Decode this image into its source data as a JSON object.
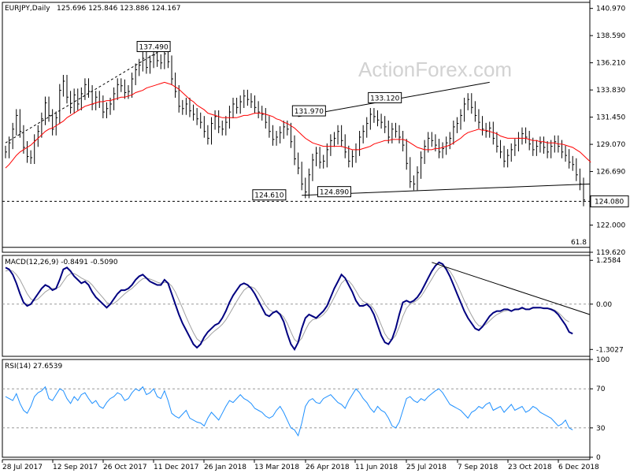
{
  "chart_data": {
    "type": "line",
    "panels": {
      "price": {
        "header": "EURJPY,Daily",
        "ohlc_values": "125.696 125.846 123.886 124.167",
        "y_ticks": [
          "140.970",
          "138.590",
          "136.210",
          "133.830",
          "131.450",
          "129.070",
          "126.690",
          "124.080",
          "122.000",
          "119.620"
        ],
        "ylim": [
          119.62,
          141.5
        ],
        "watermark": "ActionForex.com",
        "current_price": "124.080",
        "fib_label": "61.8",
        "price_labels": [
          "137.490",
          "131.970",
          "133.120",
          "124.610",
          "124.890"
        ],
        "series": [
          {
            "name": "EURJPY",
            "color": "#000000",
            "values": [
              128.4,
              129.2,
              130.4,
              131.6,
              130.2,
              128.8,
              128.0,
              127.9,
              129.4,
              130.2,
              131.3,
              132.7,
              131.6,
              130.4,
              131.4,
              133.8,
              134.6,
              133.2,
              132.3,
              133.4,
              132.6,
              133.5,
              134.3,
              133.7,
              132.6,
              133.2,
              132.8,
              131.9,
              132.2,
              132.6,
              133.5,
              134.3,
              134.2,
              133.6,
              133.7,
              134.8,
              135.6,
              136.0,
              136.6,
              135.8,
              136.3,
              136.9,
              136.4,
              136.2,
              137.0,
              136.3,
              134.8,
              133.7,
              132.4,
              132.2,
              132.6,
              132.0,
              131.7,
              131.3,
              131.0,
              130.2,
              129.6,
              130.9,
              131.5,
              130.6,
              130.4,
              131.0,
              131.9,
              132.6,
              132.3,
              132.8,
              133.3,
              133.0,
              132.8,
              132.3,
              131.9,
              131.7,
              131.0,
              130.2,
              129.5,
              129.7,
              130.1,
              130.6,
              130.4,
              129.3,
              127.8,
              127.0,
              125.6,
              124.9,
              126.4,
              127.7,
              128.3,
              127.5,
              127.6,
              128.6,
              129.4,
              129.6,
              130.2,
              129.4,
              128.4,
              127.6,
              128.0,
              128.6,
              129.7,
              130.2,
              130.9,
              131.7,
              131.5,
              131.2,
              131.0,
              130.6,
              129.7,
              130.4,
              130.2,
              129.7,
              129.0,
              127.4,
              125.8,
              125.6,
              126.6,
              127.9,
              128.9,
              129.6,
              129.4,
              129.0,
              128.4,
              128.7,
              129.2,
              129.6,
              130.6,
              130.9,
              131.6,
              132.6,
              133.0,
              132.3,
              131.6,
              131.0,
              130.4,
              130.2,
              130.5,
              129.6,
              128.9,
              128.4,
              127.6,
              128.1,
              128.6,
              129.0,
              129.6,
              130.0,
              129.7,
              129.1,
              128.6,
              128.9,
              129.2,
              128.8,
              128.4,
              128.9,
              129.3,
              128.9,
              128.4,
              128.1,
              127.5,
              127.3,
              126.4,
              125.6,
              124.2
            ]
          },
          {
            "name": "MA",
            "color": "#ff0000",
            "values": [
              127.0,
              127.3,
              127.7,
              128.1,
              128.4,
              128.6,
              128.8,
              129.0,
              129.3,
              129.6,
              129.9,
              130.2,
              130.4,
              130.5,
              130.7,
              130.9,
              131.1,
              131.4,
              131.6,
              131.8,
              132.0,
              132.2,
              132.4,
              132.5,
              132.6,
              132.7,
              132.8,
              132.8,
              132.9,
              132.9,
              133.0,
              133.1,
              133.2,
              133.2,
              133.3,
              133.4,
              133.6,
              133.7,
              133.8,
              134.0,
              134.1,
              134.2,
              134.3,
              134.4,
              134.5,
              134.4,
              134.3,
              134.1,
              133.9,
              133.6,
              133.3,
              133.0,
              132.8,
              132.5,
              132.3,
              132.1,
              131.8,
              131.7,
              131.6,
              131.5,
              131.4,
              131.4,
              131.4,
              131.4,
              131.4,
              131.5,
              131.6,
              131.6,
              131.7,
              131.8,
              131.8,
              131.8,
              131.7,
              131.6,
              131.5,
              131.3,
              131.2,
              131.0,
              130.9,
              130.7,
              130.5,
              130.2,
              129.9,
              129.6,
              129.4,
              129.2,
              129.1,
              129.0,
              128.9,
              128.9,
              128.9,
              128.9,
              128.9,
              128.9,
              128.8,
              128.7,
              128.6,
              128.6,
              128.6,
              128.7,
              128.8,
              128.9,
              129.1,
              129.2,
              129.3,
              129.4,
              129.4,
              129.5,
              129.5,
              129.5,
              129.5,
              129.4,
              129.2,
              129.0,
              128.8,
              128.7,
              128.6,
              128.6,
              128.6,
              128.7,
              128.7,
              128.8,
              128.9,
              129.0,
              129.2,
              129.4,
              129.6,
              129.9,
              130.1,
              130.2,
              130.3,
              130.4,
              130.3,
              130.3,
              130.2,
              130.1,
              130.0,
              129.8,
              129.7,
              129.6,
              129.6,
              129.6,
              129.6,
              129.6,
              129.6,
              129.5,
              129.4,
              129.4,
              129.3,
              129.3,
              129.2,
              129.2,
              129.2,
              129.1,
              129.1,
              129.0,
              128.9,
              128.8,
              128.6,
              128.4,
              128.1,
              127.8,
              127.5
            ]
          }
        ]
      },
      "macd": {
        "header": "MACD(12,26,9) -0.8491 -0.5090",
        "y_ticks": [
          "1.2584",
          "0.00",
          "-1.3027"
        ],
        "ylim": [
          -1.5,
          1.4
        ],
        "series": [
          {
            "name": "MACD",
            "color": "#000080",
            "values": [
              1.05,
              1.0,
              0.85,
              0.6,
              0.3,
              0.05,
              -0.05,
              0.0,
              0.15,
              0.3,
              0.45,
              0.55,
              0.5,
              0.4,
              0.45,
              0.7,
              1.0,
              1.05,
              0.95,
              0.8,
              0.7,
              0.6,
              0.65,
              0.55,
              0.35,
              0.2,
              0.1,
              0.0,
              -0.1,
              0.0,
              0.15,
              0.3,
              0.4,
              0.4,
              0.45,
              0.55,
              0.7,
              0.8,
              0.85,
              0.75,
              0.65,
              0.6,
              0.55,
              0.55,
              0.7,
              0.6,
              0.3,
              0.0,
              -0.3,
              -0.55,
              -0.75,
              -0.95,
              -1.15,
              -1.25,
              -1.15,
              -0.95,
              -0.8,
              -0.7,
              -0.6,
              -0.55,
              -0.4,
              -0.2,
              0.05,
              0.25,
              0.4,
              0.55,
              0.6,
              0.55,
              0.45,
              0.3,
              0.1,
              -0.1,
              -0.3,
              -0.35,
              -0.25,
              -0.2,
              -0.3,
              -0.5,
              -0.85,
              -1.15,
              -1.3,
              -1.1,
              -0.7,
              -0.4,
              -0.3,
              -0.35,
              -0.4,
              -0.3,
              -0.2,
              -0.05,
              0.2,
              0.45,
              0.65,
              0.85,
              0.75,
              0.55,
              0.35,
              0.1,
              -0.05,
              -0.05,
              0.0,
              -0.1,
              -0.3,
              -0.6,
              -0.9,
              -1.1,
              -1.15,
              -1.0,
              -0.7,
              -0.3,
              0.05,
              0.1,
              0.05,
              0.1,
              0.2,
              0.35,
              0.55,
              0.75,
              0.95,
              1.1,
              1.2,
              1.15,
              1.0,
              0.8,
              0.55,
              0.3,
              0.05,
              -0.2,
              -0.4,
              -0.55,
              -0.7,
              -0.75,
              -0.65,
              -0.5,
              -0.35,
              -0.25,
              -0.2,
              -0.2,
              -0.15,
              -0.15,
              -0.2,
              -0.15,
              -0.15,
              -0.1,
              -0.15,
              -0.15,
              -0.1,
              -0.1,
              -0.1,
              -0.12,
              -0.12,
              -0.15,
              -0.2,
              -0.3,
              -0.45,
              -0.6,
              -0.8,
              -0.85
            ]
          },
          {
            "name": "Signal",
            "color": "#a0a0a0",
            "values": [
              0.95,
              0.98,
              0.95,
              0.85,
              0.7,
              0.5,
              0.3,
              0.15,
              0.1,
              0.15,
              0.25,
              0.35,
              0.42,
              0.45,
              0.45,
              0.5,
              0.65,
              0.8,
              0.88,
              0.88,
              0.82,
              0.75,
              0.7,
              0.65,
              0.55,
              0.42,
              0.3,
              0.18,
              0.05,
              0.0,
              0.02,
              0.1,
              0.2,
              0.3,
              0.38,
              0.45,
              0.55,
              0.65,
              0.73,
              0.75,
              0.72,
              0.68,
              0.63,
              0.6,
              0.62,
              0.62,
              0.52,
              0.35,
              0.12,
              -0.12,
              -0.37,
              -0.6,
              -0.82,
              -1.0,
              -1.08,
              -1.05,
              -0.96,
              -0.85,
              -0.76,
              -0.68,
              -0.58,
              -0.45,
              -0.28,
              -0.1,
              0.08,
              0.25,
              0.4,
              0.48,
              0.5,
              0.45,
              0.32,
              0.15,
              -0.03,
              -0.16,
              -0.22,
              -0.23,
              -0.27,
              -0.37,
              -0.55,
              -0.8,
              -1.02,
              -1.1,
              -0.98,
              -0.75,
              -0.55,
              -0.45,
              -0.42,
              -0.38,
              -0.3,
              -0.18,
              0.0,
              0.2,
              0.4,
              0.6,
              0.7,
              0.67,
              0.55,
              0.38,
              0.2,
              0.08,
              0.03,
              -0.02,
              -0.15,
              -0.35,
              -0.6,
              -0.85,
              -1.0,
              -1.02,
              -0.9,
              -0.65,
              -0.35,
              -0.12,
              0.0,
              0.05,
              0.12,
              0.22,
              0.38,
              0.55,
              0.72,
              0.9,
              1.03,
              1.08,
              1.05,
              0.95,
              0.78,
              0.57,
              0.34,
              0.1,
              -0.12,
              -0.32,
              -0.5,
              -0.62,
              -0.64,
              -0.58,
              -0.48,
              -0.38,
              -0.3,
              -0.25,
              -0.2,
              -0.18,
              -0.19,
              -0.17,
              -0.16,
              -0.13,
              -0.14,
              -0.14,
              -0.12,
              -0.11,
              -0.1,
              -0.11,
              -0.11,
              -0.13,
              -0.17,
              -0.24,
              -0.34,
              -0.45,
              -0.51
            ]
          }
        ]
      },
      "rsi": {
        "header": "RSI(14) 27.6539",
        "y_ticks": [
          "100",
          "70",
          "30",
          "0"
        ],
        "ylim": [
          0,
          100
        ],
        "series": [
          {
            "name": "RSI",
            "color": "#1e90ff",
            "values": [
              62,
              60,
              58,
              65,
              55,
              48,
              45,
              52,
              62,
              66,
              68,
              72,
              60,
              58,
              64,
              70,
              68,
              60,
              55,
              62,
              58,
              64,
              66,
              60,
              55,
              58,
              52,
              50,
              56,
              60,
              62,
              66,
              64,
              58,
              60,
              66,
              70,
              68,
              72,
              64,
              66,
              70,
              62,
              60,
              68,
              58,
              45,
              42,
              40,
              44,
              48,
              40,
              38,
              36,
              35,
              32,
              40,
              46,
              42,
              38,
              45,
              52,
              58,
              56,
              60,
              64,
              60,
              58,
              55,
              50,
              48,
              46,
              42,
              40,
              42,
              48,
              52,
              46,
              38,
              30,
              28,
              22,
              35,
              52,
              58,
              60,
              56,
              55,
              60,
              62,
              64,
              60,
              56,
              54,
              50,
              58,
              64,
              70,
              66,
              60,
              56,
              50,
              46,
              52,
              48,
              46,
              40,
              32,
              30,
              36,
              48,
              60,
              62,
              58,
              56,
              60,
              58,
              62,
              65,
              68,
              70,
              66,
              60,
              54,
              52,
              50,
              48,
              44,
              40,
              46,
              48,
              52,
              50,
              54,
              56,
              48,
              50,
              52,
              46,
              50,
              54,
              48,
              50,
              52,
              46,
              48,
              52,
              50,
              46,
              44,
              42,
              40,
              36,
              32,
              34,
              38,
              30,
              28
            ]
          }
        ]
      }
    },
    "x_tick_labels": [
      "28 Jul 2017",
      "12 Sep 2017",
      "26 Oct 2017",
      "11 Dec 2017",
      "26 Jan 2018",
      "13 Mar 2018",
      "26 Apr 2018",
      "11 Jun 2018",
      "25 Jul 2018",
      "7 Sep 2018",
      "23 Oct 2018",
      "6 Dec 2018"
    ]
  }
}
